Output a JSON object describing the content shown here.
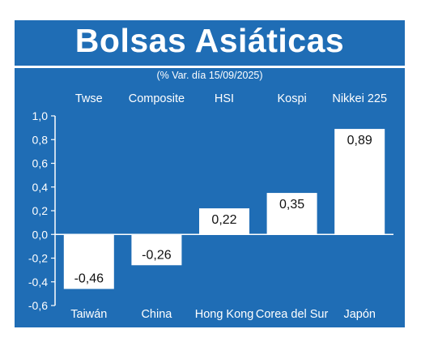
{
  "header": {
    "title": "Bolsas Asiáticas",
    "subtitle": "(% Var. día  15/09/2025)"
  },
  "colors": {
    "background": "#1f6db5",
    "bar": "#ffffff",
    "text": "#ffffff",
    "value_text": "#111111"
  },
  "chart_data": {
    "type": "bar",
    "title": "Bolsas Asiáticas",
    "subtitle": "(% Var. día  15/09/2025)",
    "categories": [
      "Taiwán",
      "China",
      "Hong Kong",
      "Corea del Sur",
      "Japón"
    ],
    "index_names": [
      "Twse",
      "Composite",
      "HSI",
      "Kospi",
      "Nikkei 225"
    ],
    "values": [
      -0.46,
      -0.26,
      0.22,
      0.35,
      0.89
    ],
    "value_labels": [
      "-0,46",
      "-0,26",
      "0,22",
      "0,35",
      "0,89"
    ],
    "ylim": [
      -0.6,
      1.0
    ],
    "yticks": [
      1.0,
      0.8,
      0.6,
      0.4,
      0.2,
      0.0,
      -0.2,
      -0.4,
      -0.6
    ],
    "ytick_labels": [
      "1,0",
      "0,8",
      "0,6",
      "0,4",
      "0,2",
      "0,0",
      "-0,2",
      "-0,4",
      "-0,6"
    ],
    "xlabel": "",
    "ylabel": "",
    "grid": false,
    "legend": "none"
  }
}
